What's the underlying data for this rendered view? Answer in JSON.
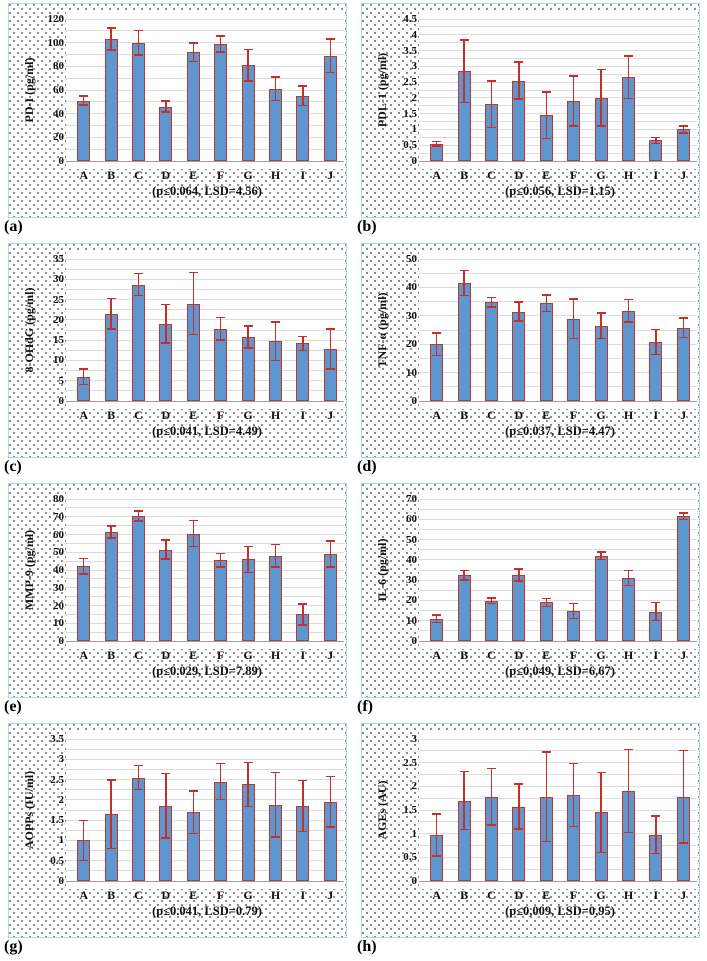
{
  "figure_name": "biomarker-bar-chart-grid",
  "style": {
    "bar_fill": "#5e97d0",
    "bar_border": "#c23527",
    "error_bar": "#c5302a",
    "gridline": "#dcdcdc",
    "axis_line": "#9f9f9f",
    "panel_edge": "#b3d2ec",
    "text": "#111111"
  },
  "chart_data": [
    {
      "type": "bar",
      "panel_label": "(a)",
      "ylabel": "PD-I (pg/ml)",
      "caption": "(p≤0.064, LSD=4.56)",
      "categories": [
        "A",
        "B",
        "C",
        "D",
        "E",
        "F",
        "G",
        "H",
        "I",
        "J"
      ],
      "values": [
        51,
        103,
        100,
        46,
        92,
        99,
        81,
        61,
        55,
        89
      ],
      "errors": [
        4,
        9.5,
        10.5,
        5,
        8,
        7,
        13.5,
        10,
        8.5,
        14.5
      ],
      "ylim": [
        0,
        120
      ],
      "ytick_step": 20,
      "yticks": [
        "0",
        "20",
        "40",
        "60",
        "80",
        "100",
        "120"
      ],
      "grid": true,
      "legend": null
    },
    {
      "type": "bar",
      "panel_label": "(b)",
      "ylabel": "PDL-1 (pg/ml)",
      "caption": "(p≤0.056, LSD=1.15)",
      "categories": [
        "A",
        "B",
        "C",
        "D",
        "E",
        "F",
        "G",
        "H",
        "I",
        "J"
      ],
      "values": [
        0.55,
        2.85,
        1.8,
        2.55,
        1.45,
        1.9,
        2.0,
        2.65,
        0.65,
        1.0
      ],
      "errors": [
        0.08,
        1.0,
        0.75,
        0.6,
        0.75,
        0.8,
        0.9,
        0.68,
        0.1,
        0.12
      ],
      "ylim": [
        0,
        4.5
      ],
      "ytick_step": 0.5,
      "yticks": [
        "0",
        "0.5",
        "1",
        "1.5",
        "2",
        "2.5",
        "3",
        "3.5",
        "4",
        "4.5"
      ],
      "grid": true,
      "legend": null
    },
    {
      "type": "bar",
      "panel_label": "(c)",
      "ylabel": "8-OHdG (pg/ml)",
      "caption": "(p≤0.041, LSD=4.49)",
      "categories": [
        "A",
        "B",
        "C",
        "D",
        "E",
        "F",
        "G",
        "H",
        "I",
        "J"
      ],
      "values": [
        6,
        21.5,
        28.7,
        19,
        24,
        17.8,
        15.8,
        14.7,
        14.2,
        12.8
      ],
      "errors": [
        2,
        3.8,
        2.8,
        4.8,
        7.7,
        2.8,
        2.8,
        4.8,
        1.8,
        5
      ],
      "ylim": [
        0,
        35
      ],
      "ytick_step": 5,
      "yticks": [
        "0",
        "5",
        "10",
        "15",
        "20",
        "25",
        "30",
        "35"
      ],
      "grid": true,
      "legend": null
    },
    {
      "type": "bar",
      "panel_label": "(d)",
      "ylabel": "TNF-α (pg/ml)",
      "caption": "(p≤0.037, LSD=4.47)",
      "categories": [
        "A",
        "B",
        "C",
        "D",
        "E",
        "F",
        "G",
        "H",
        "I",
        "J"
      ],
      "values": [
        20,
        41.5,
        34.8,
        31.5,
        34.5,
        29,
        26.5,
        31.8,
        20.8,
        25.8
      ],
      "errors": [
        4,
        4.5,
        1.8,
        3.5,
        3,
        7,
        4.5,
        4,
        4.5,
        3.5
      ],
      "ylim": [
        0,
        50
      ],
      "ytick_step": 10,
      "yticks": [
        "0",
        "10",
        "20",
        "30",
        "40",
        "50"
      ],
      "grid": true,
      "legend": null
    },
    {
      "type": "bar",
      "panel_label": "(e)",
      "ylabel": "MMP-9 (pg/ml)",
      "caption": "(p≤0.029, LSD=7.89)",
      "categories": [
        "A",
        "B",
        "C",
        "D",
        "E",
        "F",
        "G",
        "H",
        "I",
        "J"
      ],
      "values": [
        42,
        61.5,
        70.5,
        51.5,
        60.5,
        45.5,
        46,
        48,
        15,
        49
      ],
      "errors": [
        4.5,
        3.5,
        3,
        5.5,
        7.5,
        4,
        7.5,
        6.5,
        6,
        7.5
      ],
      "ylim": [
        0,
        80
      ],
      "ytick_step": 10,
      "yticks": [
        "0",
        "10",
        "20",
        "30",
        "40",
        "50",
        "60",
        "70",
        "80"
      ],
      "grid": true,
      "legend": null
    },
    {
      "type": "bar",
      "panel_label": "(f)",
      "ylabel": "IL-6 (pg/ml)",
      "caption": "(p≤0,049, LSD=6,67)",
      "categories": [
        "A",
        "B",
        "C",
        "D",
        "E",
        "F",
        "G",
        "H",
        "I",
        "J"
      ],
      "values": [
        11,
        32.5,
        19.8,
        32.5,
        19,
        14.8,
        42,
        31,
        14.5,
        61.5
      ],
      "errors": [
        2,
        2.5,
        1.5,
        3,
        2,
        3.8,
        2,
        3.8,
        4.5,
        1.8
      ],
      "ylim": [
        0,
        70
      ],
      "ytick_step": 10,
      "yticks": [
        "0",
        "10",
        "20",
        "30",
        "40",
        "50",
        "60",
        "70"
      ],
      "grid": true,
      "legend": null
    },
    {
      "type": "bar",
      "panel_label": "(g)",
      "ylabel": "AOPPs (IU/ml)",
      "caption": "(p≤0.041, LSD=0.79)",
      "categories": [
        "A",
        "B",
        "C",
        "D",
        "E",
        "F",
        "G",
        "H",
        "I",
        "J"
      ],
      "values": [
        1.0,
        1.65,
        2.55,
        1.85,
        1.7,
        2.45,
        2.38,
        1.88,
        1.85,
        1.95
      ],
      "errors": [
        0.5,
        0.85,
        0.3,
        0.8,
        0.53,
        0.45,
        0.55,
        0.8,
        0.63,
        0.63
      ],
      "ylim": [
        0,
        3.5
      ],
      "ytick_step": 0.5,
      "yticks": [
        "0",
        "0.5",
        "1",
        "1.5",
        "2",
        "2.5",
        "3",
        "3.5"
      ],
      "grid": true,
      "legend": null
    },
    {
      "type": "bar",
      "panel_label": "(h)",
      "ylabel": "AGEs (AU)",
      "caption": "(p≤0,009, LSD=0,95)",
      "categories": [
        "A",
        "B",
        "C",
        "D",
        "E",
        "F",
        "G",
        "H",
        "I",
        "J"
      ],
      "values": [
        0.97,
        1.7,
        1.78,
        1.57,
        1.78,
        1.82,
        1.45,
        1.9,
        0.98,
        1.78
      ],
      "errors": [
        0.45,
        0.62,
        0.6,
        0.48,
        0.95,
        0.67,
        0.85,
        0.88,
        0.4,
        0.98
      ],
      "ylim": [
        0,
        3
      ],
      "ytick_step": 0.5,
      "yticks": [
        "0",
        "0.5",
        "1",
        "1.5",
        "2",
        "2.5",
        "3"
      ],
      "grid": true,
      "legend": null
    }
  ]
}
